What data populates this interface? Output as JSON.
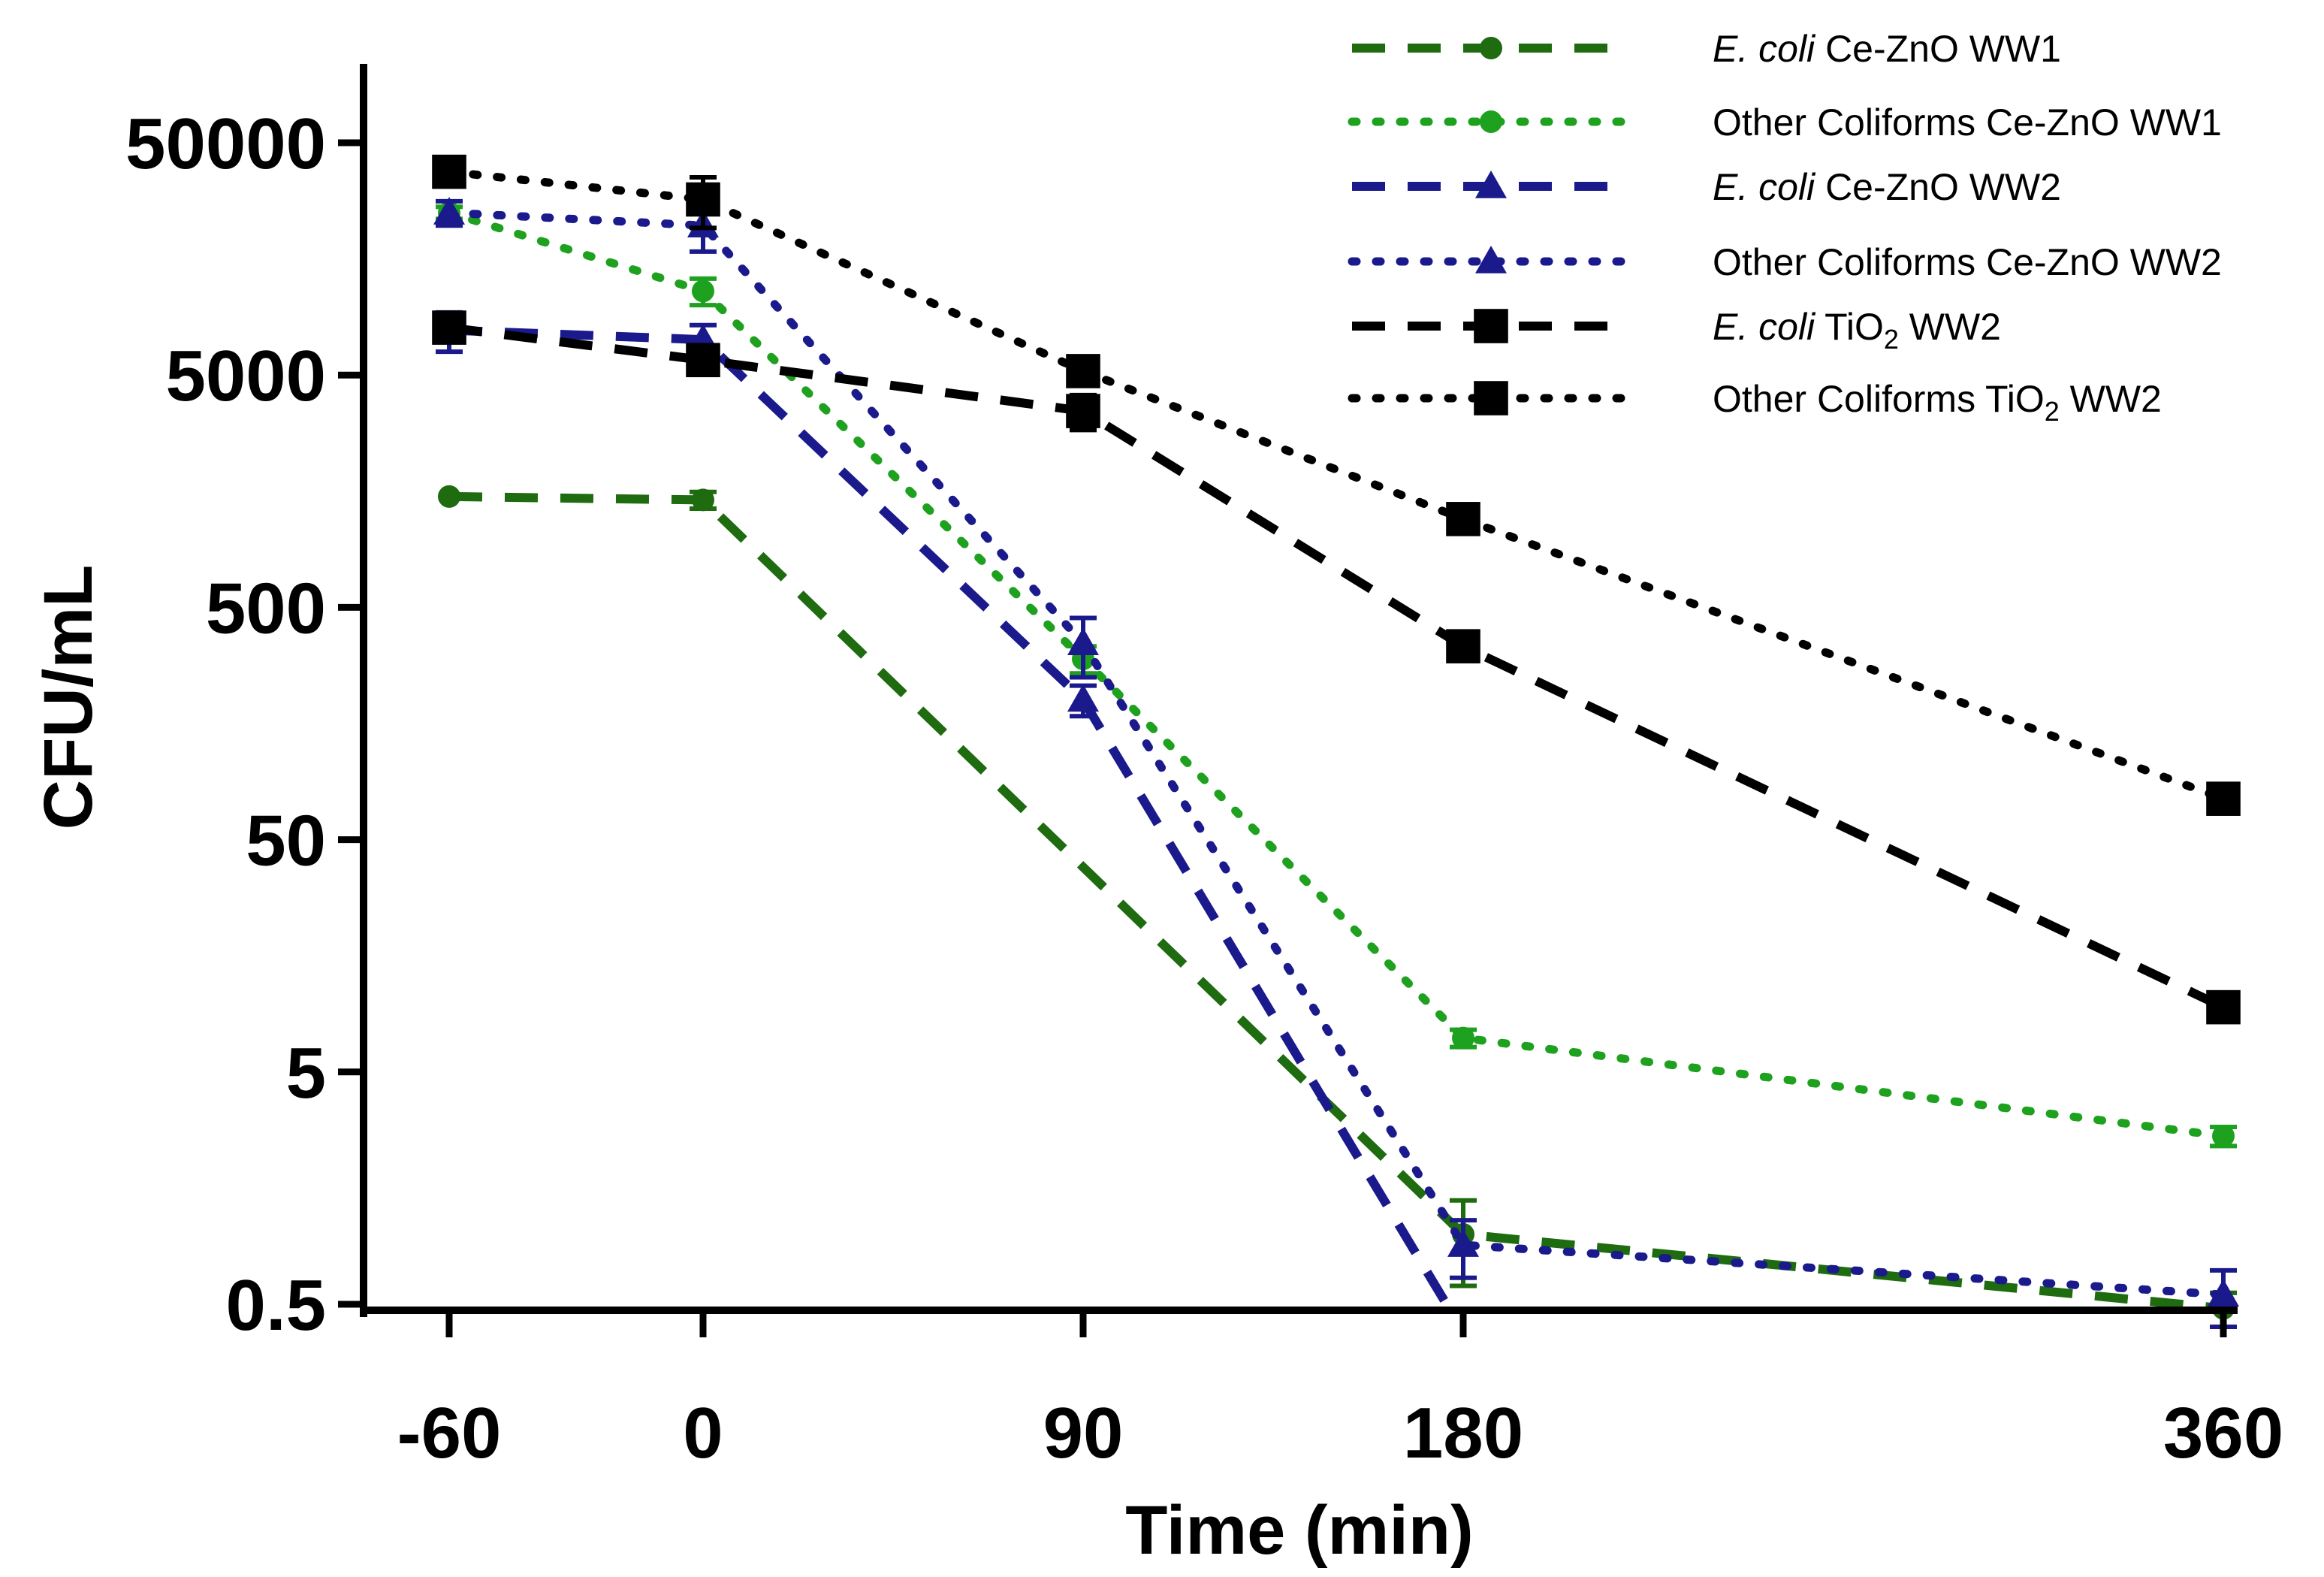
{
  "chart_data": {
    "type": "line",
    "title": "",
    "xlabel": "Time (min)",
    "ylabel": "CFU/mL",
    "y_scale": "log",
    "ylim": [
      0.5,
      100000
    ],
    "categories": [
      "-60",
      "0",
      "90",
      "180",
      "360"
    ],
    "y_ticks": [
      {
        "value": 0.5,
        "label": "0.5"
      },
      {
        "value": 5,
        "label": "5"
      },
      {
        "value": 50,
        "label": "50"
      },
      {
        "value": 500,
        "label": "500"
      },
      {
        "value": 5000,
        "label": "5000"
      },
      {
        "value": 50000,
        "label": "50000"
      }
    ],
    "series": [
      {
        "name": "E. coli Ce-ZnO WW1",
        "legend_parts": [
          {
            "text": "E. coli",
            "italic": true
          },
          {
            "text": " Ce-ZnO  WW1"
          }
        ],
        "color": "#1e6b10",
        "dash": "dashed",
        "marker": "circle",
        "values": [
          1500,
          1450,
          null,
          1.0,
          0.48
        ],
        "errors": [
          0,
          120,
          null,
          0.4,
          0.08
        ]
      },
      {
        "name": "Other Coliforms Ce-ZnO WW1",
        "legend_parts": [
          {
            "text": "Other Coliforms Ce-ZnO WW1"
          }
        ],
        "color": "#1ea11e",
        "dash": "dotted",
        "marker": "circle",
        "values": [
          25000,
          11500,
          300,
          7.0,
          2.65
        ],
        "errors": [
          1500,
          1500,
          40,
          0.6,
          0.25
        ]
      },
      {
        "name": "E. coli Ce-ZnO WW2",
        "legend_parts": [
          {
            "text": "E. coli",
            "italic": true
          },
          {
            "text": " Ce-ZnO WW2"
          }
        ],
        "color": "#1a1a8c",
        "dash": "dashed",
        "marker": "triangle",
        "values": [
          7800,
          7100,
          200,
          0.38,
          null
        ],
        "errors": [
          1500,
          1100,
          30,
          null,
          null
        ]
      },
      {
        "name": "Other Coliforms Ce-ZnO WW2",
        "legend_parts": [
          {
            "text": "Other Coliforms Ce-ZnO WW2"
          }
        ],
        "color": "#1a1a8c",
        "dash": "dotted",
        "marker": "triangle",
        "values": [
          25000,
          22000,
          350,
          0.9,
          0.55
        ],
        "errors": [
          3000,
          5000,
          100,
          0.25,
          0.15
        ]
      },
      {
        "name": "E. coli TiO2 WW2",
        "legend_parts": [
          {
            "text": "E. coli",
            "italic": true
          },
          {
            "text": " TiO"
          },
          {
            "text": "2",
            "sub": true
          },
          {
            "text": " WW2"
          }
        ],
        "color": "#000000",
        "dash": "dashed",
        "marker": "square",
        "values": [
          8000,
          5800,
          3500,
          340,
          9.5
        ],
        "errors": [
          900,
          600,
          600,
          40,
          1
        ]
      },
      {
        "name": "Other Coliforms TiO2 WW2",
        "legend_parts": [
          {
            "text": "Other Coliforms TiO"
          },
          {
            "text": "2",
            "sub": true
          },
          {
            "text": " WW2"
          }
        ],
        "color": "#000000",
        "dash": "dotted",
        "marker": "square",
        "values": [
          37500,
          28500,
          5200,
          1200,
          75
        ],
        "errors": [
          2000,
          7000,
          500,
          100,
          6
        ]
      }
    ]
  }
}
